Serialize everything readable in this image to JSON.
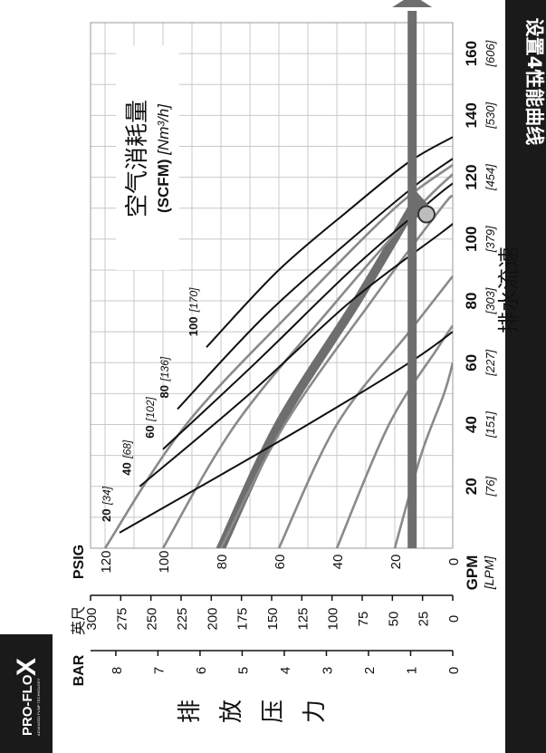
{
  "header": {
    "title": "设置4性能曲线",
    "logo_text": "PRO-FLO",
    "logo_mark": "X",
    "logo_tagline": "ADVANCED PUMP TECHNOLOGY"
  },
  "colors": {
    "header_band": "#1a1a1a",
    "grid": "#c8c8c8",
    "consumption_curves": "#8a8a8a",
    "pressure_curves": "#111111",
    "operating_line": "#6e6e6e",
    "operating_point": "#bdbdbd"
  },
  "chart_data": {
    "type": "line",
    "title": "设置4性能曲线",
    "xlabel": "排水流速",
    "x_unit_primary": "GPM",
    "x_unit_secondary": "[LPM]",
    "xlim": [
      0,
      170
    ],
    "x_ticks": [
      {
        "gpm": 0,
        "gpm_label": "0",
        "lpm_label": ""
      },
      {
        "gpm": 20,
        "gpm_label": "20",
        "lpm_label": "[76]"
      },
      {
        "gpm": 40,
        "gpm_label": "40",
        "lpm_label": "[151]"
      },
      {
        "gpm": 60,
        "gpm_label": "60",
        "lpm_label": "[227]"
      },
      {
        "gpm": 80,
        "gpm_label": "80",
        "lpm_label": "[303]"
      },
      {
        "gpm": 100,
        "gpm_label": "100",
        "lpm_label": "[379]"
      },
      {
        "gpm": 120,
        "gpm_label": "120",
        "lpm_label": "[454]"
      },
      {
        "gpm": 140,
        "gpm_label": "140",
        "lpm_label": "[530]"
      },
      {
        "gpm": 160,
        "gpm_label": "160",
        "lpm_label": "[606]"
      }
    ],
    "ylabel": "排放压力",
    "ylim": [
      0,
      125
    ],
    "y_axes": {
      "psig": {
        "label": "PSIG",
        "ticks": [
          0,
          20,
          40,
          60,
          80,
          100,
          120
        ],
        "tick_labels": [
          "0",
          "20",
          "40",
          "60",
          "80",
          "100",
          "120"
        ]
      },
      "feet": {
        "label": "英尺",
        "ticks": [
          0,
          25,
          50,
          75,
          100,
          125,
          150,
          175,
          200,
          225,
          250,
          275,
          300
        ],
        "tick_labels": [
          "0",
          "25",
          "50",
          "75",
          "100",
          "125",
          "150",
          "175",
          "200",
          "225",
          "250",
          "275",
          "300"
        ]
      },
      "bar": {
        "label": "BAR",
        "ticks": [
          0,
          1,
          2,
          3,
          4,
          5,
          6,
          7,
          8
        ],
        "tick_labels": [
          "0",
          "1",
          "2",
          "3",
          "4",
          "5",
          "6",
          "7",
          "8"
        ]
      }
    },
    "series_air_pressure": [
      {
        "name": "120",
        "points": [
          [
            0,
            120
          ],
          [
            40,
            92
          ],
          [
            80,
            52
          ],
          [
            110,
            20
          ],
          [
            124,
            0
          ]
        ]
      },
      {
        "name": "100",
        "points": [
          [
            0,
            100
          ],
          [
            40,
            75
          ],
          [
            80,
            40
          ],
          [
            110,
            12
          ],
          [
            121,
            0
          ]
        ]
      },
      {
        "name": "80",
        "points": [
          [
            0,
            80
          ],
          [
            40,
            58
          ],
          [
            80,
            28
          ],
          [
            110,
            4
          ],
          [
            114,
            0
          ]
        ]
      },
      {
        "name": "60",
        "points": [
          [
            0,
            60
          ],
          [
            40,
            40
          ],
          [
            70,
            15
          ],
          [
            88,
            0
          ]
        ]
      },
      {
        "name": "40",
        "points": [
          [
            0,
            40
          ],
          [
            40,
            22
          ],
          [
            65,
            5
          ],
          [
            72,
            0
          ]
        ]
      },
      {
        "name": "20",
        "points": [
          [
            0,
            20
          ],
          [
            30,
            11
          ],
          [
            50,
            3
          ],
          [
            60,
            0
          ]
        ]
      }
    ],
    "series_air_consumption": [
      {
        "name": "20",
        "name_metric": "[34]",
        "points": [
          [
            5,
            115
          ],
          [
            20,
            87
          ],
          [
            40,
            50
          ],
          [
            60,
            15
          ],
          [
            70,
            0
          ]
        ]
      },
      {
        "name": "40",
        "name_metric": "[68]",
        "points": [
          [
            20,
            108
          ],
          [
            50,
            70
          ],
          [
            80,
            35
          ],
          [
            102,
            4
          ],
          [
            105,
            0
          ]
        ]
      },
      {
        "name": "60",
        "name_metric": "[102]",
        "points": [
          [
            32,
            100
          ],
          [
            60,
            68
          ],
          [
            90,
            35
          ],
          [
            112,
            8
          ],
          [
            118,
            0
          ]
        ]
      },
      {
        "name": "80",
        "name_metric": "[136]",
        "points": [
          [
            45,
            95
          ],
          [
            75,
            65
          ],
          [
            100,
            35
          ],
          [
            118,
            12
          ],
          [
            126,
            0
          ]
        ]
      },
      {
        "name": "100",
        "name_metric": "[170]",
        "points": [
          [
            65,
            85
          ],
          [
            90,
            60
          ],
          [
            110,
            35
          ],
          [
            125,
            15
          ],
          [
            133,
            0
          ]
        ]
      }
    ],
    "consumption_title": "空气消耗量",
    "consumption_units": "(SCFM)",
    "consumption_units_metric": "[Nm³/h]",
    "operating_line": {
      "points": [
        [
          0,
          80
        ],
        [
          40,
          60
        ],
        [
          80,
          33
        ],
        [
          110,
          14
        ]
      ]
    },
    "operating_flow_gpm": 108,
    "operating_head_psig": 14,
    "flow_marker_gpm": 111
  }
}
